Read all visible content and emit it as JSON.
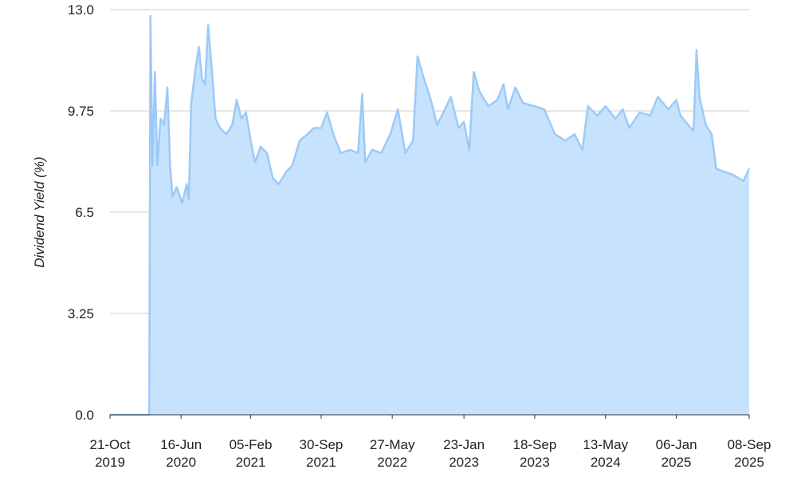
{
  "chart_data": {
    "type": "area",
    "y_label": "Dividend Yield (%)",
    "color": "#9ccaf8",
    "fill": "#c6e2fc",
    "grid": true,
    "xlim": [
      "2019-10-21",
      "2025-09-08"
    ],
    "xticks": [
      {
        "value": "2019-10-21",
        "label": "21-Oct\n2019"
      },
      {
        "value": "2020-06-16",
        "label": "16-Jun\n2020"
      },
      {
        "value": "2021-02-05",
        "label": "05-Feb\n2021"
      },
      {
        "value": "2021-09-30",
        "label": "30-Sep\n2021"
      },
      {
        "value": "2022-05-27",
        "label": "27-May\n2022"
      },
      {
        "value": "2023-01-23",
        "label": "23-Jan\n2023"
      },
      {
        "value": "2023-09-18",
        "label": "18-Sep\n2023"
      },
      {
        "value": "2024-05-13",
        "label": "13-May\n2024"
      },
      {
        "value": "2025-01-06",
        "label": "06-Jan\n2025"
      },
      {
        "value": "2025-09-08",
        "label": "08-Sep\n2025"
      }
    ],
    "ylim": [
      0,
      13
    ],
    "yticks": [
      {
        "value": 0,
        "label": "0.0"
      },
      3.25,
      6.5,
      9.75,
      {
        "value": 13,
        "label": "13.0"
      }
    ],
    "x": [
      "2019-10-21",
      "2020-03-01",
      "2020-03-05",
      "2020-03-12",
      "2020-03-20",
      "2020-03-28",
      "2020-04-08",
      "2020-04-20",
      "2020-05-01",
      "2020-05-10",
      "2020-05-18",
      "2020-06-01",
      "2020-06-20",
      "2020-07-05",
      "2020-07-12",
      "2020-07-20",
      "2020-08-05",
      "2020-08-15",
      "2020-08-25",
      "2020-09-05",
      "2020-09-15",
      "2020-09-28",
      "2020-10-10",
      "2020-10-25",
      "2020-11-15",
      "2020-12-05",
      "2020-12-20",
      "2021-01-05",
      "2021-01-20",
      "2021-02-05",
      "2021-02-20",
      "2021-03-10",
      "2021-04-01",
      "2021-04-20",
      "2021-05-10",
      "2021-06-05",
      "2021-06-25",
      "2021-07-20",
      "2021-08-15",
      "2021-09-05",
      "2021-09-30",
      "2021-10-20",
      "2021-11-10",
      "2021-12-05",
      "2022-01-05",
      "2022-02-01",
      "2022-02-15",
      "2022-02-25",
      "2022-03-20",
      "2022-04-20",
      "2022-05-20",
      "2022-06-15",
      "2022-07-10",
      "2022-08-05",
      "2022-08-20",
      "2022-09-10",
      "2022-10-01",
      "2022-10-25",
      "2022-11-20",
      "2022-12-10",
      "2023-01-05",
      "2023-01-23",
      "2023-02-10",
      "2023-02-25",
      "2023-03-15",
      "2023-04-15",
      "2023-05-15",
      "2023-06-05",
      "2023-06-20",
      "2023-07-15",
      "2023-08-10",
      "2023-09-18",
      "2023-10-20",
      "2023-11-25",
      "2023-12-30",
      "2024-01-30",
      "2024-02-25",
      "2024-03-15",
      "2024-04-15",
      "2024-05-13",
      "2024-06-15",
      "2024-07-10",
      "2024-08-01",
      "2024-09-05",
      "2024-10-10",
      "2024-11-05",
      "2024-12-10",
      "2025-01-06",
      "2025-01-20",
      "2025-02-15",
      "2025-03-05",
      "2025-03-15",
      "2025-03-25",
      "2025-04-15",
      "2025-05-05",
      "2025-05-20",
      "2025-06-15",
      "2025-07-15",
      "2025-08-20",
      "2025-09-08"
    ],
    "values": [
      0,
      0,
      12.8,
      8.0,
      11.0,
      8.0,
      9.5,
      9.3,
      10.5,
      8.0,
      7.0,
      7.3,
      6.8,
      7.4,
      6.9,
      10.0,
      11.2,
      11.8,
      10.8,
      10.6,
      12.5,
      11.0,
      9.5,
      9.2,
      9.0,
      9.3,
      10.1,
      9.5,
      9.7,
      8.8,
      8.1,
      8.6,
      8.4,
      7.6,
      7.4,
      7.8,
      8.0,
      8.8,
      9.0,
      9.2,
      9.2,
      9.7,
      9.0,
      8.4,
      8.5,
      8.4,
      10.3,
      8.1,
      8.5,
      8.4,
      9.0,
      9.8,
      8.4,
      8.8,
      11.5,
      10.8,
      10.2,
      9.3,
      9.8,
      10.2,
      9.2,
      9.4,
      8.5,
      11.0,
      10.4,
      9.9,
      10.1,
      10.6,
      9.8,
      10.5,
      10.0,
      9.9,
      9.8,
      9.0,
      8.8,
      9.0,
      8.5,
      9.9,
      9.6,
      9.9,
      9.5,
      9.8,
      9.2,
      9.7,
      9.6,
      10.2,
      9.8,
      10.1,
      9.6,
      9.3,
      9.1,
      11.7,
      10.2,
      9.3,
      9.0,
      7.9,
      7.8,
      7.7,
      7.5,
      7.9
    ]
  }
}
